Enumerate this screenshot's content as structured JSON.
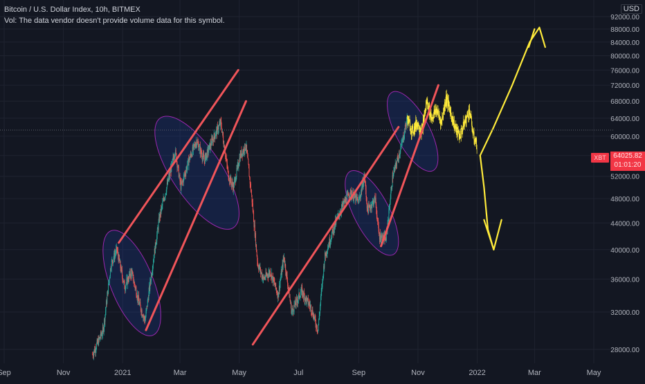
{
  "header": {
    "symbol_line": "Bitcoin / U.S. Dollar Index, 10h, BITMEX",
    "volume_line": "Vol: The data vendor doesn't provide volume data for this symbol.",
    "currency": "USD"
  },
  "price_badge": {
    "ticker": "XBT",
    "price": "64025.82",
    "countdown": "01:01:20"
  },
  "colors": {
    "background": "#131722",
    "up_candle": "#26a69a",
    "down_candle": "#ef5350",
    "trendline": "#f0555a",
    "drawing": "#ffeb3b",
    "highlight_ellipse": "#9c27b0",
    "axis_text": "#b2b5be"
  },
  "chart_data": {
    "type": "candlestick",
    "y_scale": "log",
    "ylim": [
      26500,
      93000
    ],
    "y_ticks": [
      {
        "value": 28000,
        "label": "28000.00"
      },
      {
        "value": 32000,
        "label": "32000.00"
      },
      {
        "value": 36000,
        "label": "36000.00"
      },
      {
        "value": 40000,
        "label": "40000.00"
      },
      {
        "value": 44000,
        "label": "44000.00"
      },
      {
        "value": 48000,
        "label": "48000.00"
      },
      {
        "value": 52000,
        "label": "52000.00"
      },
      {
        "value": 56000,
        "label": "56000.00"
      },
      {
        "value": 60000,
        "label": "60000.00"
      },
      {
        "value": 64000,
        "label": "64000.00"
      },
      {
        "value": 68000,
        "label": "68000.00"
      },
      {
        "value": 72000,
        "label": "72000.00"
      },
      {
        "value": 76000,
        "label": "76000.00"
      },
      {
        "value": 80000,
        "label": "80000.00"
      },
      {
        "value": 84000,
        "label": "84000.00"
      },
      {
        "value": 88000,
        "label": "88000.00"
      },
      {
        "value": 92000,
        "label": "92000.00"
      }
    ],
    "xlim": [
      "2020-09-01",
      "2022-05-31"
    ],
    "x_ticks": [
      {
        "date": "2020-09-01",
        "label": "Sep"
      },
      {
        "date": "2020-11-01",
        "label": "Nov"
      },
      {
        "date": "2021-01-01",
        "label": "2021"
      },
      {
        "date": "2021-03-01",
        "label": "Mar"
      },
      {
        "date": "2021-05-01",
        "label": "May"
      },
      {
        "date": "2021-07-01",
        "label": "Jul"
      },
      {
        "date": "2021-09-01",
        "label": "Sep"
      },
      {
        "date": "2021-11-01",
        "label": "Nov"
      },
      {
        "date": "2022-01-01",
        "label": "2022"
      },
      {
        "date": "2022-03-01",
        "label": "Mar"
      },
      {
        "date": "2022-05-01",
        "label": "May"
      }
    ],
    "price_path": [
      {
        "date": "2020-12-01",
        "price": 27500
      },
      {
        "date": "2020-12-12",
        "price": 30000
      },
      {
        "date": "2020-12-20",
        "price": 38000
      },
      {
        "date": "2020-12-26",
        "price": 40000
      },
      {
        "date": "2021-01-03",
        "price": 35000
      },
      {
        "date": "2021-01-10",
        "price": 37000
      },
      {
        "date": "2021-01-18",
        "price": 33000
      },
      {
        "date": "2021-01-24",
        "price": 31000
      },
      {
        "date": "2021-02-01",
        "price": 38000
      },
      {
        "date": "2021-02-08",
        "price": 45000
      },
      {
        "date": "2021-02-18",
        "price": 52000
      },
      {
        "date": "2021-02-24",
        "price": 57000
      },
      {
        "date": "2021-03-02",
        "price": 50000
      },
      {
        "date": "2021-03-10",
        "price": 55000
      },
      {
        "date": "2021-03-18",
        "price": 59000
      },
      {
        "date": "2021-03-26",
        "price": 55000
      },
      {
        "date": "2021-04-03",
        "price": 59000
      },
      {
        "date": "2021-04-12",
        "price": 63000
      },
      {
        "date": "2021-04-20",
        "price": 52000
      },
      {
        "date": "2021-04-25",
        "price": 50000
      },
      {
        "date": "2021-05-02",
        "price": 56000
      },
      {
        "date": "2021-05-08",
        "price": 58000
      },
      {
        "date": "2021-05-14",
        "price": 48000
      },
      {
        "date": "2021-05-20",
        "price": 38000
      },
      {
        "date": "2021-05-26",
        "price": 36000
      },
      {
        "date": "2021-06-02",
        "price": 37000
      },
      {
        "date": "2021-06-10",
        "price": 34000
      },
      {
        "date": "2021-06-16",
        "price": 39000
      },
      {
        "date": "2021-06-24",
        "price": 32000
      },
      {
        "date": "2021-07-04",
        "price": 34500
      },
      {
        "date": "2021-07-14",
        "price": 32500
      },
      {
        "date": "2021-07-21",
        "price": 30000
      },
      {
        "date": "2021-07-28",
        "price": 39000
      },
      {
        "date": "2021-08-08",
        "price": 44000
      },
      {
        "date": "2021-08-16",
        "price": 47000
      },
      {
        "date": "2021-08-23",
        "price": 49000
      },
      {
        "date": "2021-09-01",
        "price": 47500
      },
      {
        "date": "2021-09-07",
        "price": 52000
      },
      {
        "date": "2021-09-10",
        "price": 46000
      },
      {
        "date": "2021-09-18",
        "price": 48000
      },
      {
        "date": "2021-09-22",
        "price": 42000
      },
      {
        "date": "2021-09-29",
        "price": 41500
      },
      {
        "date": "2021-10-06",
        "price": 52000
      },
      {
        "date": "2021-10-15",
        "price": 58000
      },
      {
        "date": "2021-10-21",
        "price": 64000
      }
    ],
    "projected_candles": [
      {
        "date": "2021-10-21",
        "price": 64000
      },
      {
        "date": "2021-10-26",
        "price": 61000
      },
      {
        "date": "2021-10-31",
        "price": 63000
      },
      {
        "date": "2021-11-05",
        "price": 61000
      },
      {
        "date": "2021-11-10",
        "price": 68000
      },
      {
        "date": "2021-11-15",
        "price": 64000
      },
      {
        "date": "2021-11-20",
        "price": 66000
      },
      {
        "date": "2021-11-25",
        "price": 63000
      },
      {
        "date": "2021-11-30",
        "price": 69000
      },
      {
        "date": "2021-12-05",
        "price": 65000
      },
      {
        "date": "2021-12-09",
        "price": 62000
      },
      {
        "date": "2021-12-14",
        "price": 60000
      },
      {
        "date": "2021-12-19",
        "price": 63000
      },
      {
        "date": "2021-12-24",
        "price": 66000
      },
      {
        "date": "2021-12-28",
        "price": 60000
      },
      {
        "date": "2022-01-01",
        "price": 58000
      }
    ],
    "annotations": {
      "last_price": 64025.82,
      "trendlines": [
        {
          "from": {
            "date": "2020-12-28",
            "price": 41000
          },
          "to": {
            "date": "2021-04-30",
            "price": 76000
          }
        },
        {
          "from": {
            "date": "2021-01-25",
            "price": 30000
          },
          "to": {
            "date": "2021-05-08",
            "price": 68000
          }
        },
        {
          "from": {
            "date": "2021-05-15",
            "price": 28500
          },
          "to": {
            "date": "2021-10-12",
            "price": 62000
          }
        },
        {
          "from": {
            "date": "2021-09-24",
            "price": 40500
          },
          "to": {
            "date": "2021-11-22",
            "price": 72000
          }
        }
      ],
      "highlight_zones": [
        {
          "from": "2020-12-22",
          "to": "2021-01-30",
          "low": 30000,
          "high": 42000
        },
        {
          "from": "2021-02-12",
          "to": "2021-04-22",
          "low": 44000,
          "high": 63000
        },
        {
          "from": "2021-08-26",
          "to": "2021-10-04",
          "low": 40000,
          "high": 52000
        },
        {
          "from": "2021-10-08",
          "to": "2021-11-14",
          "low": 54000,
          "high": 69000
        }
      ],
      "scenario_up": [
        {
          "date": "2022-01-04",
          "price": 56000
        },
        {
          "date": "2022-01-18",
          "price": 62000
        },
        {
          "date": "2022-02-06",
          "price": 72000
        },
        {
          "date": "2022-02-24",
          "price": 84000
        },
        {
          "date": "2022-03-06",
          "price": 88500
        },
        {
          "date": "2022-03-12",
          "price": 82500
        }
      ],
      "scenario_up_tail": [
        {
          "date": "2022-02-23",
          "price": 82500
        },
        {
          "date": "2022-03-01",
          "price": 88000
        }
      ],
      "scenario_down": [
        {
          "date": "2022-01-04",
          "price": 56000
        },
        {
          "date": "2022-01-08",
          "price": 50000
        },
        {
          "date": "2022-01-12",
          "price": 43000
        },
        {
          "date": "2022-01-18",
          "price": 40000
        },
        {
          "date": "2022-01-26",
          "price": 44500
        }
      ],
      "scenario_down_tail": [
        {
          "date": "2022-01-08",
          "price": 44500
        },
        {
          "date": "2022-01-18",
          "price": 40000
        }
      ]
    }
  }
}
